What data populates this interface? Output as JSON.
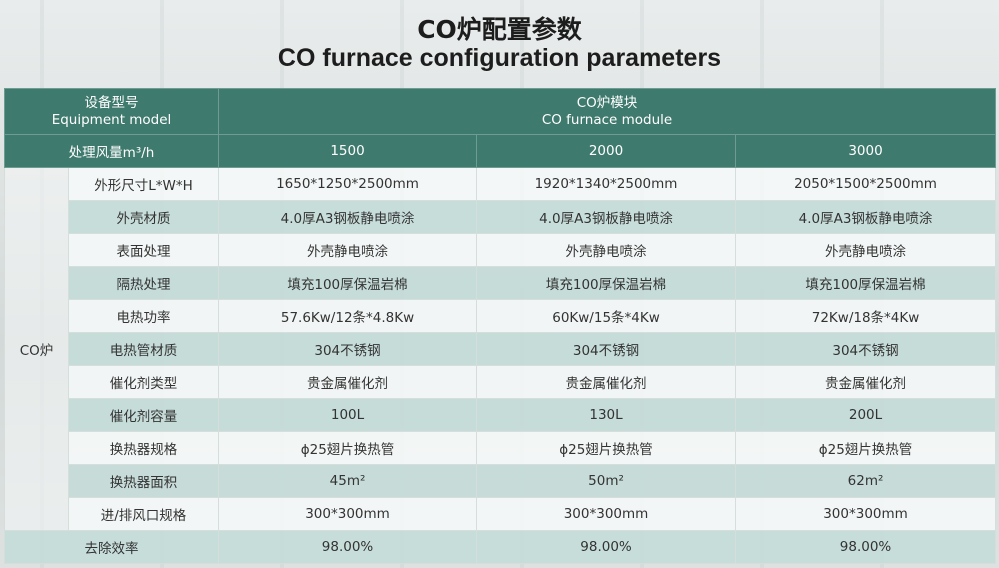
{
  "title_cn": "CO炉配置参数",
  "title_en": "CO furnace configuration parameters",
  "header": {
    "model_cn": "设备型号",
    "model_en": "Equipment model",
    "module_cn": "CO炉模块",
    "module_en": "CO furnace module",
    "airflow_label": "处理风量m³/h",
    "airflow_values": [
      "1500",
      "2000",
      "3000"
    ]
  },
  "group_label": "CO炉",
  "rows": [
    {
      "label": "外形尺寸L*W*H",
      "values": [
        "1650*1250*2500mm",
        "1920*1340*2500mm",
        "2050*1500*2500mm"
      ]
    },
    {
      "label": "外壳材质",
      "values": [
        "4.0厚A3钢板静电喷涂",
        "4.0厚A3钢板静电喷涂",
        "4.0厚A3钢板静电喷涂"
      ]
    },
    {
      "label": "表面处理",
      "values": [
        "外壳静电喷涂",
        "外壳静电喷涂",
        "外壳静电喷涂"
      ]
    },
    {
      "label": "隔热处理",
      "values": [
        "填充100厚保温岩棉",
        "填充100厚保温岩棉",
        "填充100厚保温岩棉"
      ]
    },
    {
      "label": "电热功率",
      "values": [
        "57.6Kw/12条*4.8Kw",
        "60Kw/15条*4Kw",
        "72Kw/18条*4Kw"
      ]
    },
    {
      "label": "电热管材质",
      "values": [
        "304不锈钢",
        "304不锈钢",
        "304不锈钢"
      ]
    },
    {
      "label": "催化剂类型",
      "values": [
        "贵金属催化剂",
        "贵金属催化剂",
        "贵金属催化剂"
      ]
    },
    {
      "label": "催化剂容量",
      "values": [
        "100L",
        "130L",
        "200L"
      ]
    },
    {
      "label": "换热器规格",
      "values": [
        "ɸ25翅片换热管",
        "ɸ25翅片换热管",
        "ɸ25翅片换热管"
      ]
    },
    {
      "label": "换热器面积",
      "values": [
        "45m²",
        "50m²",
        "62m²"
      ]
    },
    {
      "label": "进/排风口规格",
      "values": [
        "300*300mm",
        "300*300mm",
        "300*300mm"
      ]
    }
  ],
  "efficiency": {
    "label": "去除效率",
    "values": [
      "98.00%",
      "98.00%",
      "98.00%"
    ]
  },
  "colors": {
    "header": "#3f7a6e",
    "stripe": "#c4dcd8"
  }
}
